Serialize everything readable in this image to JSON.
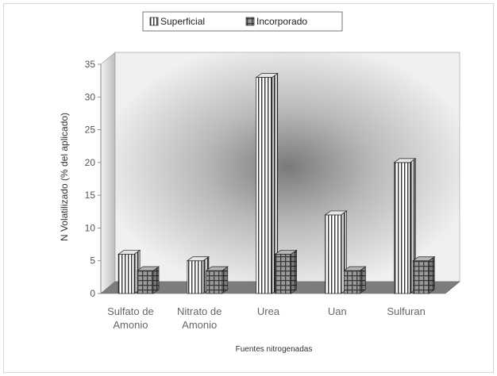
{
  "chart_data": {
    "type": "bar",
    "title": "",
    "xlabel": "Fuentes nitrogenadas",
    "ylabel": "N Volatilizado (% del aplicado)",
    "ylim": [
      0,
      35
    ],
    "yticks": [
      0,
      5,
      10,
      15,
      20,
      25,
      30,
      35
    ],
    "categories": [
      [
        "Sulfato de",
        "Amonio"
      ],
      [
        "Nitrato de",
        "Amonio"
      ],
      [
        "Urea"
      ],
      [
        "Uan"
      ],
      [
        "Sulfuran"
      ]
    ],
    "series": [
      {
        "name": "Superficial",
        "values": [
          6,
          5,
          33,
          12,
          20
        ]
      },
      {
        "name": "Incorporado",
        "values": [
          3.5,
          3.5,
          6,
          3.5,
          5
        ]
      }
    ],
    "legend_position": "top",
    "grid": false,
    "three_d": true
  }
}
